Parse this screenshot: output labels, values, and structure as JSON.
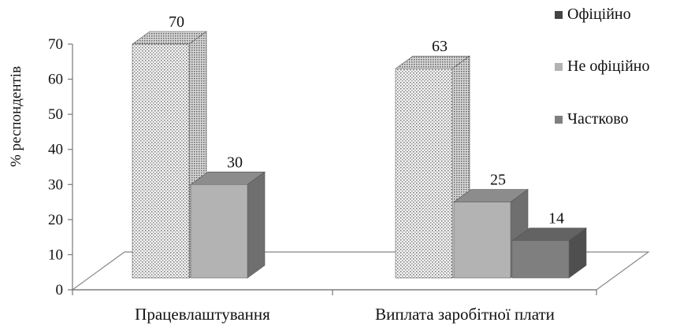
{
  "chart_data": {
    "type": "bar",
    "ylabel": "% респондентів",
    "ylim": [
      0,
      70
    ],
    "yticks": [
      0,
      10,
      20,
      30,
      40,
      50,
      60,
      70
    ],
    "categories": [
      "Працевлаштування",
      "Виплата заробітної плати"
    ],
    "series": [
      {
        "name": "Офіційно",
        "values": [
          70,
          63
        ],
        "color": "#d9d9d9",
        "pattern": "dotted"
      },
      {
        "name": "Не офіційно",
        "values": [
          30,
          25
        ],
        "color": "#b3b3b3"
      },
      {
        "name": "Частково",
        "values": [
          null,
          14
        ],
        "color": "#7f7f7f"
      }
    ],
    "legend_position": "right",
    "legend_swatch_colors": [
      "#444444",
      "#b3b3b3",
      "#7f7f7f"
    ],
    "grid": false,
    "style": "3d-column"
  }
}
